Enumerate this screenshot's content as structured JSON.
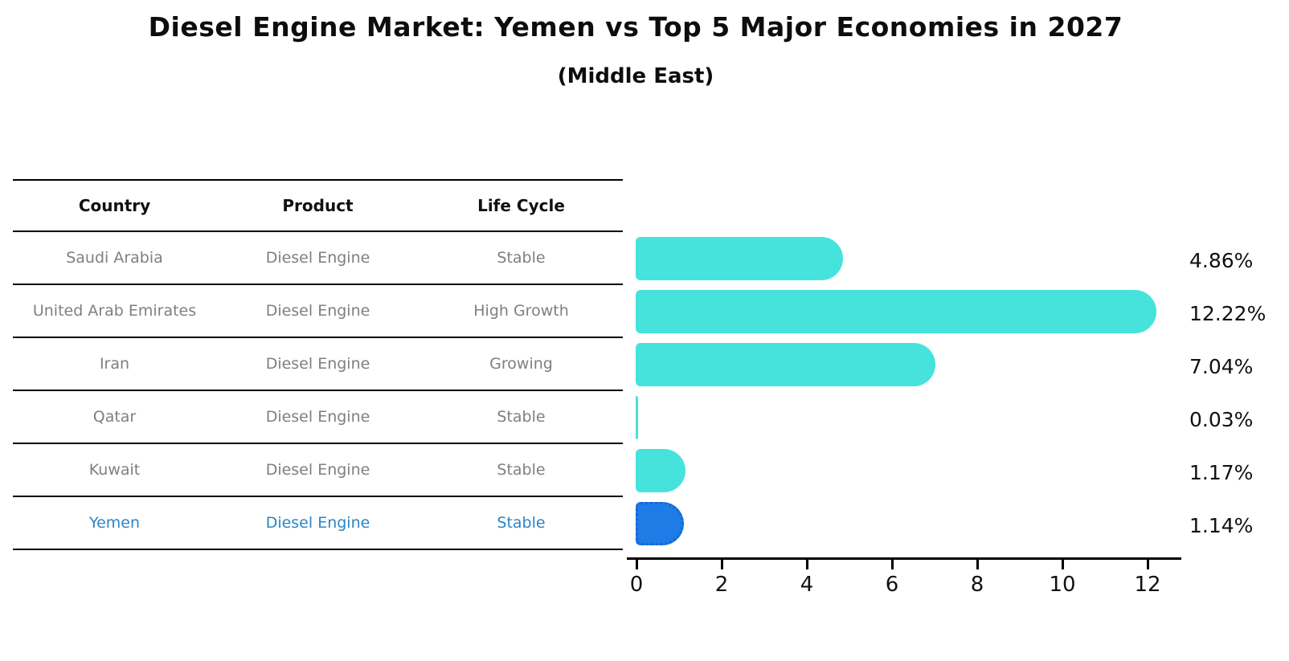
{
  "title": "Diesel Engine Market: Yemen vs Top 5 Major Economies in 2027",
  "subtitle": "(Middle East)",
  "table": {
    "headers": [
      "Country",
      "Product",
      "Life Cycle"
    ],
    "highlight_color": "#2c84c6",
    "text_color": "#7f7f7f",
    "rows": [
      {
        "country": "Saudi Arabia",
        "product": "Diesel Engine",
        "life_cycle": "Stable",
        "highlight": false
      },
      {
        "country": "United Arab Emirates",
        "product": "Diesel Engine",
        "life_cycle": "High Growth",
        "highlight": false
      },
      {
        "country": "Iran",
        "product": "Diesel Engine",
        "life_cycle": "Growing",
        "highlight": false
      },
      {
        "country": "Qatar",
        "product": "Diesel Engine",
        "life_cycle": "Stable",
        "highlight": false
      },
      {
        "country": "Kuwait",
        "product": "Diesel Engine",
        "life_cycle": "Stable",
        "highlight": false
      },
      {
        "country": "Yemen",
        "product": "Diesel Engine",
        "life_cycle": "Stable",
        "highlight": true
      }
    ]
  },
  "chart_data": {
    "type": "bar",
    "orientation": "horizontal",
    "categories": [
      "Saudi Arabia",
      "United Arab Emirates",
      "Iran",
      "Qatar",
      "Kuwait",
      "Yemen"
    ],
    "values": [
      4.86,
      12.22,
      7.04,
      0.03,
      1.17,
      1.14
    ],
    "labels": [
      "4.86%",
      "12.22%",
      "7.04%",
      "0.03%",
      "1.17%",
      "1.14%"
    ],
    "x_ticks": [
      0,
      2,
      4,
      6,
      8,
      10,
      12
    ],
    "xlim": [
      0,
      13
    ],
    "grid": false,
    "legend": "none",
    "highlight_category": "Yemen",
    "colors": {
      "bar": "#45e3dc",
      "highlight_bar": "#1e7ce6",
      "highlight_border": "#1565d8"
    }
  }
}
